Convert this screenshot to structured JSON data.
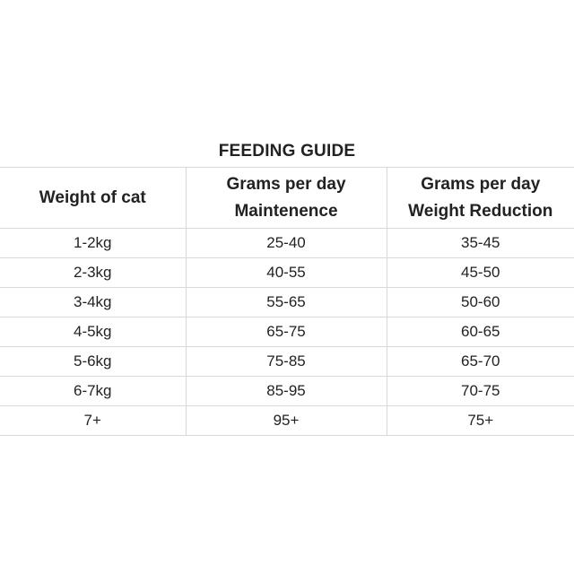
{
  "title": "FEEDING GUIDE",
  "headers": [
    {
      "line1": "Weight of cat",
      "line2": ""
    },
    {
      "line1": "Grams per day",
      "line2": "Maintenence"
    },
    {
      "line1": "Grams per day",
      "line2": "Weight Reduction"
    }
  ],
  "rows": [
    [
      "1-2kg",
      "25-40",
      "35-45"
    ],
    [
      "2-3kg",
      "40-55",
      "45-50"
    ],
    [
      "3-4kg",
      "55-65",
      "50-60"
    ],
    [
      "4-5kg",
      "65-75",
      "60-65"
    ],
    [
      "5-6kg",
      "75-85",
      "65-70"
    ],
    [
      "6-7kg",
      "85-95",
      "70-75"
    ],
    [
      "7+",
      "95+",
      "75+"
    ]
  ]
}
